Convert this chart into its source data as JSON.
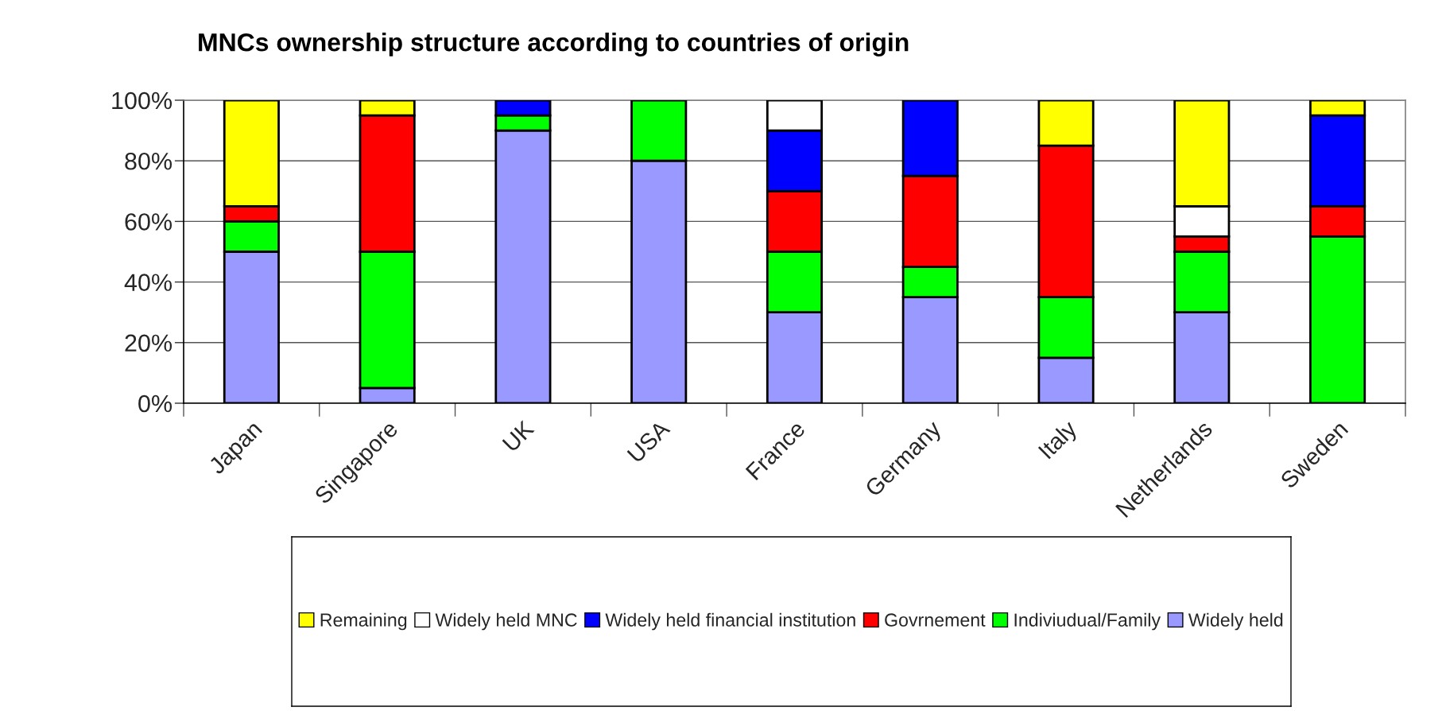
{
  "chart_data": {
    "type": "bar",
    "title": "MNCs ownership structure according to countries of origin",
    "categories": [
      "Japan",
      "Singapore",
      "UK",
      "USA",
      "France",
      "Germany",
      "Italy",
      "Netherlands",
      "Sweden"
    ],
    "stacked": true,
    "series": [
      {
        "name": "Widely held",
        "color": "#9999ff",
        "values": [
          50,
          5,
          90,
          80,
          30,
          35,
          15,
          30,
          null
        ]
      },
      {
        "name": "Indiviudual/Family",
        "color": "#00ff00",
        "values": [
          10,
          45,
          5,
          20,
          20,
          10,
          20,
          20,
          55
        ]
      },
      {
        "name": "Govrnement",
        "color": "#ff0000",
        "values": [
          5,
          45,
          null,
          null,
          20,
          30,
          50,
          5,
          10
        ]
      },
      {
        "name": "Widely held financial institution",
        "color": "#0000ff",
        "values": [
          null,
          null,
          5,
          null,
          20,
          25,
          null,
          null,
          30
        ]
      },
      {
        "name": "Widely held MNC",
        "color": "#ffffff",
        "values": [
          null,
          null,
          null,
          null,
          10,
          null,
          null,
          10,
          null
        ]
      },
      {
        "name": "Remaining",
        "color": "#ffff00",
        "values": [
          35,
          5,
          null,
          null,
          null,
          null,
          15,
          35,
          5
        ]
      }
    ],
    "ylim": [
      0,
      100
    ],
    "yticks": [
      {
        "value": 0,
        "label": "0%"
      },
      {
        "value": 20,
        "label": "20%"
      },
      {
        "value": 40,
        "label": "40%"
      },
      {
        "value": 60,
        "label": "60%"
      },
      {
        "value": 80,
        "label": "80%"
      },
      {
        "value": 100,
        "label": "100%"
      }
    ],
    "grid": "y",
    "legend": "bottom"
  }
}
